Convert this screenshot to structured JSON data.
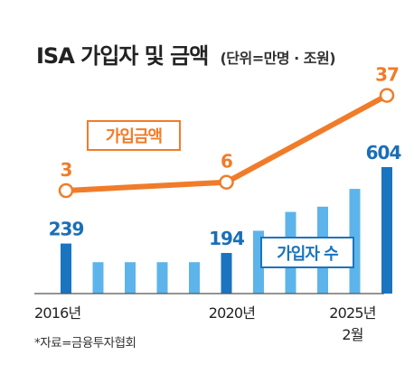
{
  "title": "ISA 가입자 및 금액",
  "unit": "(단위=만명 · 조원)",
  "source": "*자료=금융투자협회",
  "colors": {
    "bar_dark": "#1a74bf",
    "bar_light": "#5db4ea",
    "line": "#f07c2a",
    "label_blue": "#1a6fb7",
    "background": "#ffffff"
  },
  "chart_data": [
    {
      "type": "bar",
      "series": [
        {
          "name": "가입자 수",
          "values": [
            239,
            150,
            150,
            150,
            150,
            194,
            300,
            390,
            415,
            500,
            604
          ],
          "data_labels": [
            "239",
            "",
            "",
            "",
            "",
            "194",
            "",
            "",
            "",
            "",
            "604"
          ],
          "highlight": [
            true,
            false,
            false,
            false,
            false,
            true,
            false,
            false,
            false,
            false,
            true
          ]
        }
      ],
      "x_tick_labels": [
        "2016년",
        "2020년",
        "2025년\n2월"
      ],
      "x_tick_positions": [
        0,
        5,
        10
      ]
    },
    {
      "type": "line",
      "series": [
        {
          "name": "가입금액",
          "values": [
            3,
            6,
            37
          ],
          "x_index": [
            0,
            5,
            10
          ],
          "data_labels": [
            "3",
            "6",
            "37"
          ]
        }
      ]
    }
  ]
}
